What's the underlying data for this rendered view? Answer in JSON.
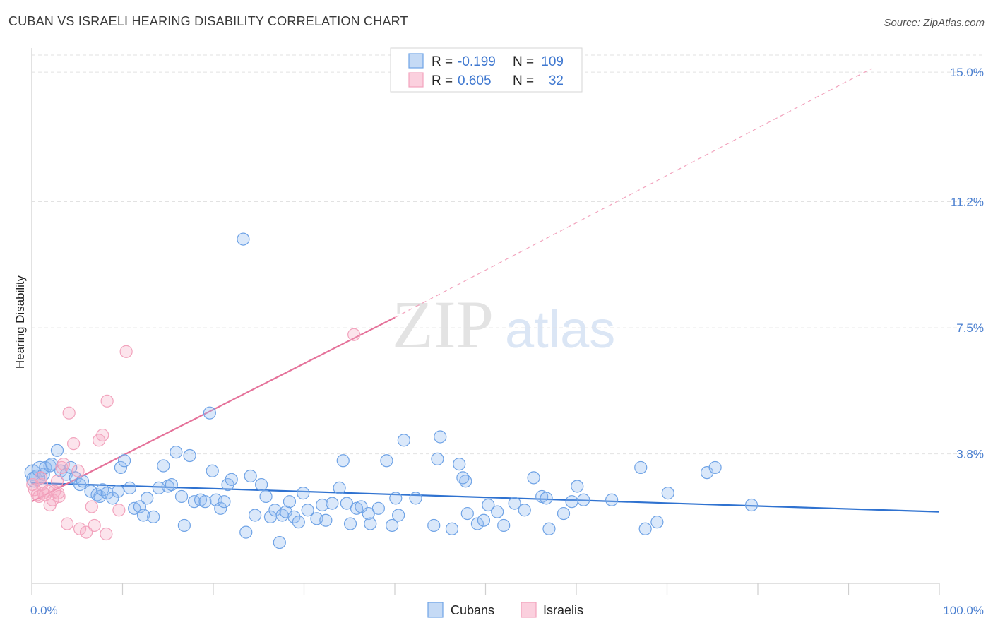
{
  "title": "CUBAN VS ISRAELI HEARING DISABILITY CORRELATION CHART",
  "source": "Source: ZipAtlas.com",
  "watermark": {
    "zip": "ZIP",
    "atlas": "atlas"
  },
  "chart_data": {
    "type": "scatter",
    "title": "CUBAN VS ISRAELI HEARING DISABILITY CORRELATION CHART",
    "xlabel": "",
    "ylabel": "Hearing Disability",
    "xlim": [
      0,
      100
    ],
    "ylim": [
      0,
      15.5
    ],
    "x_tick_labels": [
      {
        "value": 0,
        "label": "0.0%"
      },
      {
        "value": 100,
        "label": "100.0%"
      }
    ],
    "y_ticks": [
      {
        "value": 3.8,
        "label": "3.8%"
      },
      {
        "value": 7.5,
        "label": "7.5%"
      },
      {
        "value": 11.2,
        "label": "11.2%"
      },
      {
        "value": 15.0,
        "label": "15.0%"
      }
    ],
    "x_minor_ticks": [
      0,
      10,
      20,
      30,
      40,
      50,
      60,
      70,
      80,
      90,
      100
    ],
    "grid": true,
    "legend_stats": [
      {
        "series": "Cubans",
        "r_label": "R =",
        "r_value": "-0.199",
        "n_label": "N =",
        "n_value": "109"
      },
      {
        "series": "Israelis",
        "r_label": "R =",
        "r_value": "0.605",
        "n_label": "N =",
        "n_value": "32"
      }
    ],
    "series": [
      {
        "name": "Cubans",
        "color": "#6fa3e6",
        "line_color": "#2f72d0",
        "trend": {
          "x0": 0,
          "y0": 2.95,
          "x1": 100,
          "y1": 2.1
        },
        "points": [
          [
            0.1,
            3.25
          ],
          [
            0.3,
            3.05
          ],
          [
            0.6,
            3.1
          ],
          [
            0.9,
            3.35
          ],
          [
            1.3,
            3.2
          ],
          [
            1.5,
            3.4
          ],
          [
            2.0,
            3.45
          ],
          [
            2.2,
            3.5
          ],
          [
            2.8,
            3.9
          ],
          [
            3.2,
            3.3
          ],
          [
            3.8,
            3.2
          ],
          [
            4.3,
            3.4
          ],
          [
            4.8,
            3.1
          ],
          [
            5.3,
            2.9
          ],
          [
            5.6,
            3.0
          ],
          [
            6.5,
            2.7
          ],
          [
            7.2,
            2.6
          ],
          [
            7.5,
            2.55
          ],
          [
            7.8,
            2.75
          ],
          [
            8.3,
            2.65
          ],
          [
            8.9,
            2.5
          ],
          [
            9.5,
            2.7
          ],
          [
            9.8,
            3.4
          ],
          [
            10.2,
            3.6
          ],
          [
            10.8,
            2.8
          ],
          [
            11.3,
            2.2
          ],
          [
            11.9,
            2.25
          ],
          [
            12.3,
            2.0
          ],
          [
            12.7,
            2.5
          ],
          [
            13.4,
            1.95
          ],
          [
            14.0,
            2.8
          ],
          [
            14.5,
            3.45
          ],
          [
            15.0,
            2.85
          ],
          [
            15.4,
            2.9
          ],
          [
            15.9,
            3.85
          ],
          [
            16.5,
            2.55
          ],
          [
            16.8,
            1.7
          ],
          [
            17.4,
            3.75
          ],
          [
            17.9,
            2.4
          ],
          [
            18.6,
            2.45
          ],
          [
            19.1,
            2.4
          ],
          [
            19.6,
            5.0
          ],
          [
            19.9,
            3.3
          ],
          [
            20.3,
            2.45
          ],
          [
            20.8,
            2.2
          ],
          [
            21.2,
            2.4
          ],
          [
            21.6,
            2.9
          ],
          [
            22.0,
            3.05
          ],
          [
            23.3,
            10.1
          ],
          [
            23.6,
            1.5
          ],
          [
            24.1,
            3.15
          ],
          [
            24.6,
            2.0
          ],
          [
            25.3,
            2.9
          ],
          [
            25.8,
            2.55
          ],
          [
            26.3,
            1.95
          ],
          [
            26.8,
            2.15
          ],
          [
            27.3,
            1.2
          ],
          [
            27.6,
            2.0
          ],
          [
            28.0,
            2.1
          ],
          [
            28.4,
            2.4
          ],
          [
            28.9,
            1.95
          ],
          [
            29.4,
            1.8
          ],
          [
            29.9,
            2.65
          ],
          [
            30.4,
            2.15
          ],
          [
            31.4,
            1.9
          ],
          [
            32.0,
            2.3
          ],
          [
            32.4,
            1.85
          ],
          [
            33.1,
            2.35
          ],
          [
            33.9,
            2.8
          ],
          [
            34.3,
            3.6
          ],
          [
            34.7,
            2.35
          ],
          [
            35.1,
            1.75
          ],
          [
            35.8,
            2.2
          ],
          [
            36.3,
            2.25
          ],
          [
            37.1,
            2.05
          ],
          [
            37.3,
            1.75
          ],
          [
            38.2,
            2.2
          ],
          [
            39.1,
            3.6
          ],
          [
            39.7,
            1.7
          ],
          [
            40.1,
            2.5
          ],
          [
            40.4,
            2.0
          ],
          [
            41.0,
            4.2
          ],
          [
            42.3,
            2.5
          ],
          [
            45.0,
            4.3
          ],
          [
            47.8,
            3.0
          ],
          [
            47.1,
            3.5
          ],
          [
            47.5,
            3.1
          ],
          [
            44.3,
            1.7
          ],
          [
            44.7,
            3.65
          ],
          [
            46.3,
            1.6
          ],
          [
            48.0,
            2.05
          ],
          [
            49.1,
            1.75
          ],
          [
            49.8,
            1.85
          ],
          [
            50.3,
            2.3
          ],
          [
            51.3,
            2.1
          ],
          [
            52.0,
            1.7
          ],
          [
            53.2,
            2.35
          ],
          [
            54.3,
            2.15
          ],
          [
            55.3,
            3.1
          ],
          [
            56.2,
            2.55
          ],
          [
            56.7,
            2.5
          ],
          [
            57.0,
            1.6
          ],
          [
            58.6,
            2.05
          ],
          [
            59.5,
            2.4
          ],
          [
            60.1,
            2.85
          ],
          [
            60.8,
            2.45
          ],
          [
            63.9,
            2.45
          ],
          [
            67.1,
            3.4
          ],
          [
            67.6,
            1.6
          ],
          [
            68.9,
            1.8
          ],
          [
            70.1,
            2.65
          ],
          [
            74.4,
            3.25
          ],
          [
            75.3,
            3.4
          ],
          [
            79.3,
            2.3
          ]
        ]
      },
      {
        "name": "Israelis",
        "color": "#f2a3bd",
        "line_color": "#e5729a",
        "trend": {
          "x0": 0,
          "y0": 2.4,
          "x1": 40,
          "y1": 7.8
        },
        "trend_ext": {
          "x0": 40,
          "y0": 7.8,
          "x1": 92.5,
          "y1": 15.1
        },
        "points": [
          [
            0.1,
            2.9
          ],
          [
            0.3,
            2.75
          ],
          [
            0.6,
            2.6
          ],
          [
            0.8,
            2.55
          ],
          [
            1.1,
            2.9
          ],
          [
            1.3,
            2.65
          ],
          [
            1.5,
            2.6
          ],
          [
            1.8,
            2.7
          ],
          [
            2.0,
            2.3
          ],
          [
            2.3,
            2.45
          ],
          [
            2.5,
            2.7
          ],
          [
            2.8,
            3.0
          ],
          [
            3.0,
            2.55
          ],
          [
            3.3,
            3.4
          ],
          [
            3.5,
            3.5
          ],
          [
            3.9,
            1.75
          ],
          [
            4.1,
            5.0
          ],
          [
            4.6,
            4.1
          ],
          [
            5.1,
            3.3
          ],
          [
            5.3,
            1.6
          ],
          [
            6.0,
            1.5
          ],
          [
            6.6,
            2.25
          ],
          [
            6.9,
            1.7
          ],
          [
            7.4,
            4.2
          ],
          [
            7.8,
            4.35
          ],
          [
            8.2,
            1.45
          ],
          [
            8.3,
            5.35
          ],
          [
            9.6,
            2.15
          ],
          [
            10.4,
            6.8
          ],
          [
            35.5,
            7.3
          ],
          [
            2.9,
            2.65
          ],
          [
            1.0,
            3.1
          ]
        ]
      }
    ]
  },
  "bottom_legend": [
    {
      "label": "Cubans"
    },
    {
      "label": "Israelis"
    }
  ]
}
